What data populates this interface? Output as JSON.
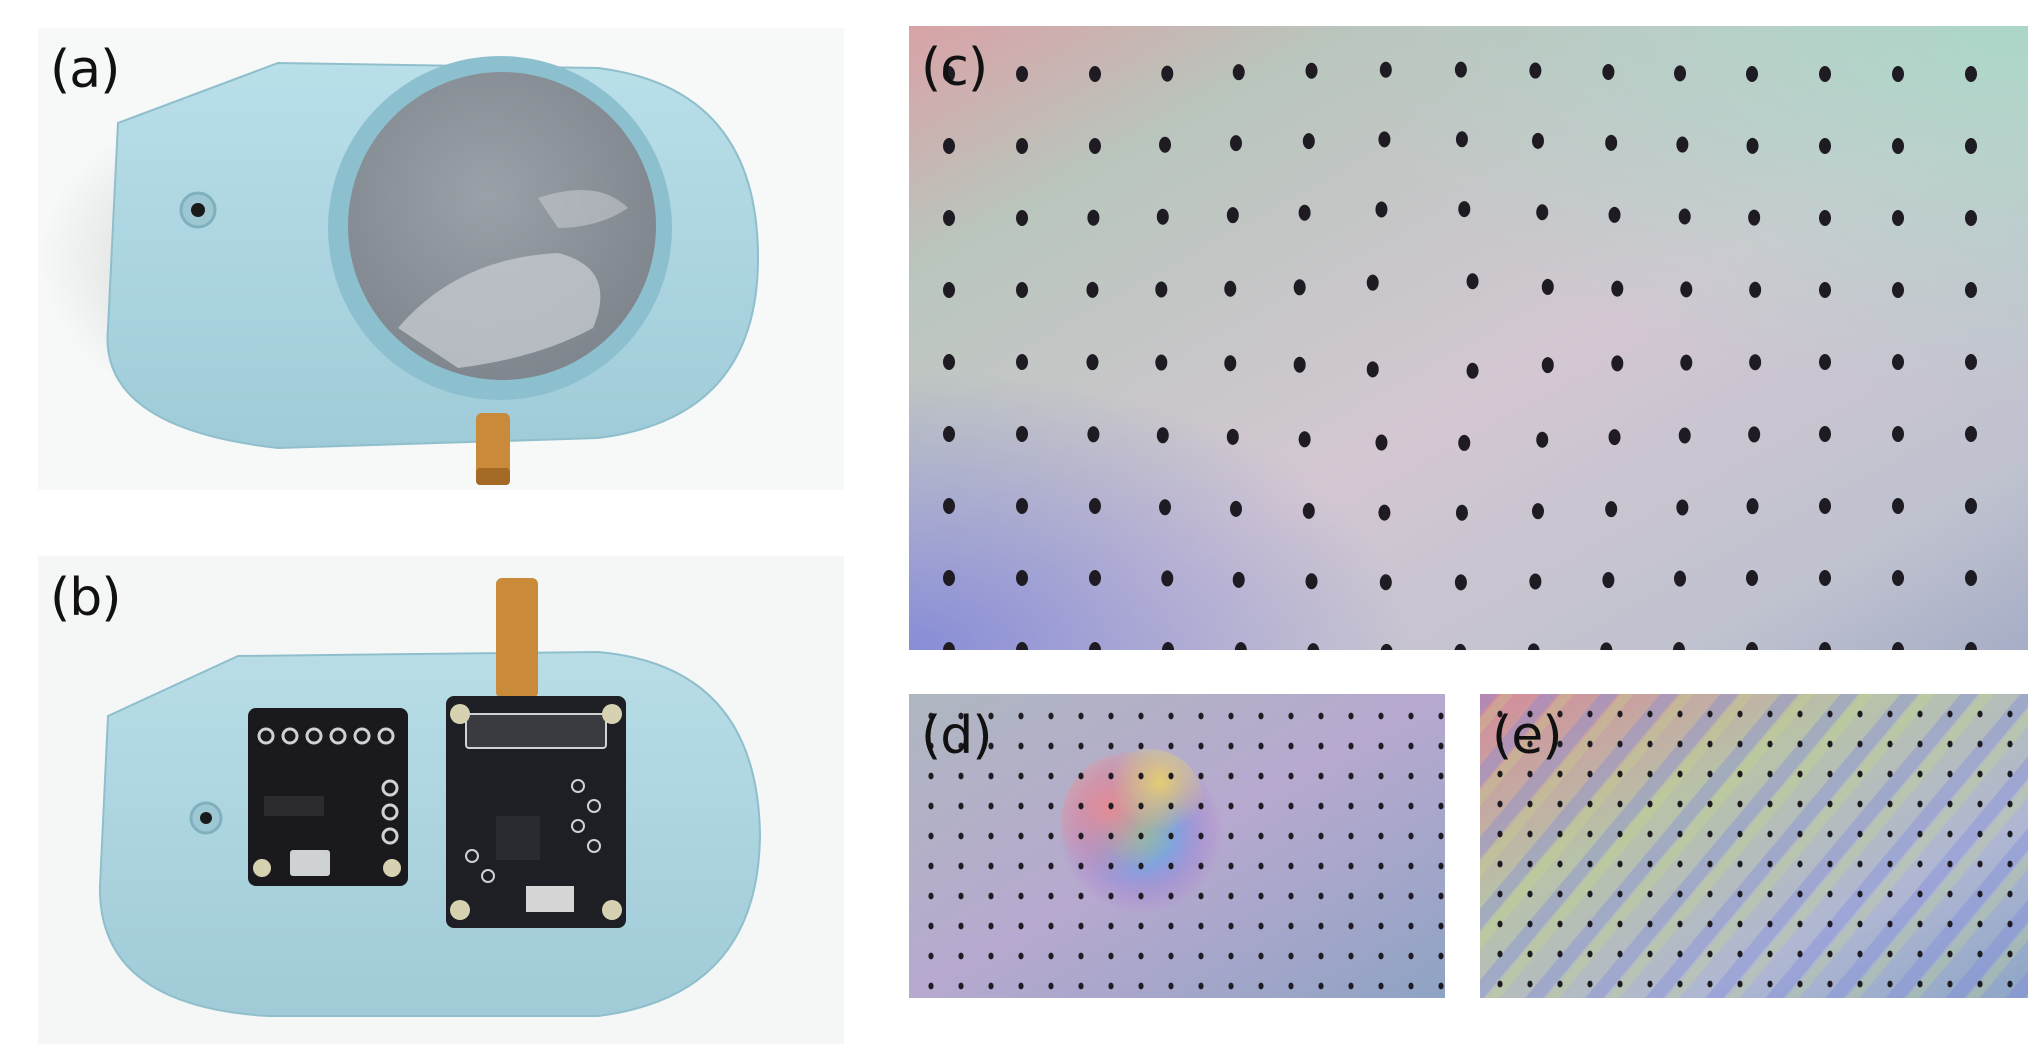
{
  "figure": {
    "panels": [
      {
        "label": "(a)"
      },
      {
        "label": "(b)"
      },
      {
        "label": "(c)"
      },
      {
        "label": "(d)"
      },
      {
        "label": "(e)"
      }
    ],
    "device_colors": {
      "housing": "#a9d3df",
      "elastomer": "#8b9298",
      "board": "#1a1a1e",
      "ribbon": "#c98a3a"
    },
    "dot_grid": {
      "dot_color": "#1e1c22"
    }
  }
}
